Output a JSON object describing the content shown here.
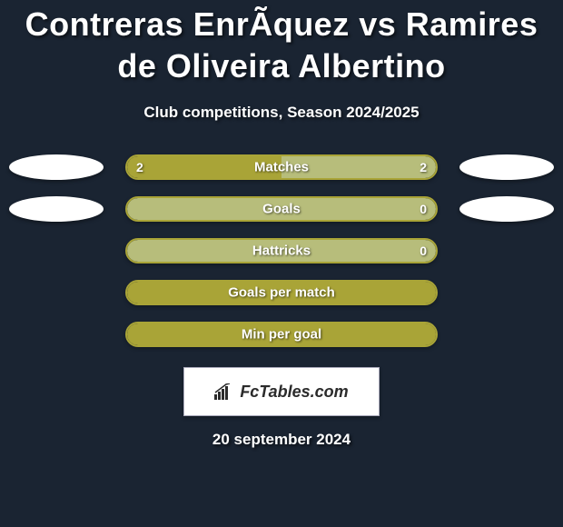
{
  "header": {
    "title": "Contreras EnrÃ­quez vs Ramires de Oliveira Albertino",
    "subtitle": "Club competitions, Season 2024/2025"
  },
  "colors": {
    "background": "#1a2432",
    "bar_border": "#a9a437",
    "bar_fill_primary": "#a9a437",
    "bar_fill_secondary": "#b7bd7b",
    "ellipse": "#ffffff",
    "text": "#ffffff"
  },
  "stats": {
    "type": "comparison-bars",
    "rows": [
      {
        "label": "Matches",
        "left_value": "2",
        "right_value": "2",
        "left_pct": 50,
        "right_pct": 50,
        "left_ellipse": true,
        "right_ellipse": true
      },
      {
        "label": "Goals",
        "left_value": "",
        "right_value": "0",
        "left_pct": 0,
        "right_pct": 100,
        "left_ellipse": true,
        "right_ellipse": true
      },
      {
        "label": "Hattricks",
        "left_value": "",
        "right_value": "0",
        "left_pct": 0,
        "right_pct": 100,
        "left_ellipse": false,
        "right_ellipse": false
      },
      {
        "label": "Goals per match",
        "left_value": "",
        "right_value": "",
        "left_pct": 100,
        "right_pct": 0,
        "left_ellipse": false,
        "right_ellipse": false
      },
      {
        "label": "Min per goal",
        "left_value": "",
        "right_value": "",
        "left_pct": 100,
        "right_pct": 0,
        "left_ellipse": false,
        "right_ellipse": false
      }
    ]
  },
  "footer": {
    "logo_text": "FcTables.com",
    "date": "20 september 2024"
  }
}
